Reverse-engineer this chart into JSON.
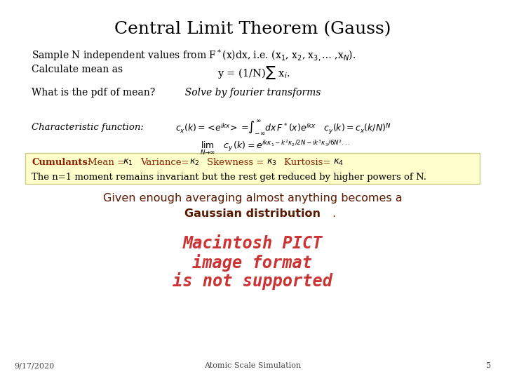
{
  "title": "Central Limit Theorem (Gauss)",
  "bg_color": "#ffffff",
  "title_color": "#000000",
  "title_fontsize": 18,
  "footer_date": "9/17/2020",
  "footer_center": "Atomic Scale Simulation",
  "footer_page": "5",
  "highlight_box_color": "#ffffcc",
  "highlight_box_edge": "#cccc88",
  "cumulants_color": "#8B2000",
  "body_color": "#000000",
  "given_color": "#5a1a00",
  "gaussian_color": "#5a1a00",
  "pict_color": "#cc3333",
  "footer_color": "#444444"
}
